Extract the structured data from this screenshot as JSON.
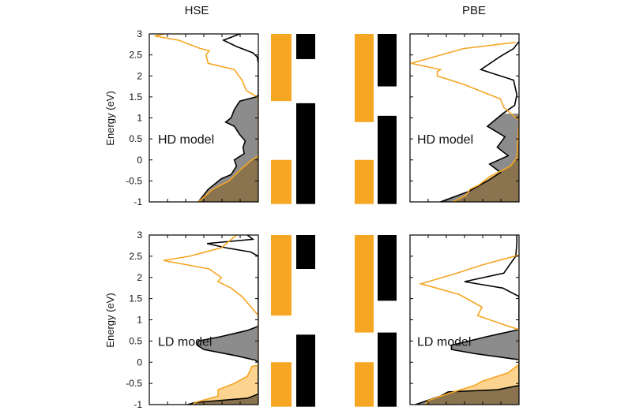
{
  "colors": {
    "black_series": "#000000",
    "orange_series": "#f5a623",
    "black_fill": "#8c8c8c",
    "orange_fill": "#fcd48f"
  },
  "ylabel": "Energy (eV)",
  "columns": [
    "HSE",
    "PBE"
  ],
  "chart_data": [
    {
      "type": "line",
      "column": "HSE",
      "row": 0,
      "annotation": "HD model",
      "ylim": [
        -1,
        3
      ],
      "yticks": [
        "3",
        "2.5",
        "2",
        "1.5",
        "1",
        "0.5",
        "0",
        "-0.5",
        "-1"
      ],
      "x_direction": "right-to-left",
      "black": {
        "points": [
          [
            3,
            0.17
          ],
          [
            2.85,
            0.32
          ],
          [
            2.7,
            0.2
          ],
          [
            2.55,
            0.05
          ],
          [
            2.45,
            0.01
          ],
          [
            2.3,
            0
          ],
          [
            1.55,
            0
          ],
          [
            1.5,
            0.02
          ],
          [
            1.4,
            0.17
          ],
          [
            1.2,
            0.22
          ],
          [
            1.0,
            0.25
          ],
          [
            0.9,
            0.3
          ],
          [
            0.8,
            0.22
          ],
          [
            0.6,
            0.17
          ],
          [
            0.45,
            0.12
          ],
          [
            0.3,
            0.14
          ],
          [
            0.15,
            0.13
          ],
          [
            0,
            0.22
          ],
          [
            -0.15,
            0.2
          ],
          [
            -0.35,
            0.25
          ],
          [
            -0.45,
            0.34
          ],
          [
            -0.7,
            0.46
          ],
          [
            -1,
            0.55
          ]
        ],
        "fill_below": 1.55
      },
      "orange": {
        "points": [
          [
            3,
            0.86
          ],
          [
            2.95,
            0.95
          ],
          [
            2.85,
            0.73
          ],
          [
            2.65,
            0.53
          ],
          [
            2.6,
            0.45
          ],
          [
            2.5,
            0.48
          ],
          [
            2.3,
            0.46
          ],
          [
            2.15,
            0.22
          ],
          [
            1.9,
            0.15
          ],
          [
            1.65,
            0.11
          ],
          [
            1.5,
            0.01
          ],
          [
            1.45,
            0
          ],
          [
            0.1,
            0
          ],
          [
            0,
            0.06
          ],
          [
            -0.2,
            0.15
          ],
          [
            -0.5,
            0.27
          ],
          [
            -0.7,
            0.42
          ],
          [
            -1,
            0.55
          ]
        ],
        "fill_below": 0.1
      },
      "bars": {
        "orange": [
          [
            -1.05,
            0
          ],
          [
            1.4,
            3
          ]
        ],
        "black": [
          [
            -1.05,
            1.35
          ],
          [
            2.4,
            3
          ]
        ]
      }
    },
    {
      "type": "line",
      "column": "PBE",
      "row": 0,
      "annotation": "HD model",
      "ylim": [
        -1,
        3
      ],
      "x_direction": "right-to-left",
      "black": {
        "points": [
          [
            2.82,
            0
          ],
          [
            2.65,
            0.05
          ],
          [
            2.45,
            0.18
          ],
          [
            2.15,
            0.35
          ],
          [
            1.9,
            0.05
          ],
          [
            1.55,
            0.02
          ],
          [
            1.3,
            0.04
          ],
          [
            1.1,
            0.15
          ],
          [
            0.8,
            0.29
          ],
          [
            0.55,
            0.13
          ],
          [
            0.3,
            0.2
          ],
          [
            0.1,
            0.1
          ],
          [
            -0.1,
            0.27
          ],
          [
            -0.3,
            0.17
          ],
          [
            -0.5,
            0.29
          ],
          [
            -0.75,
            0.46
          ],
          [
            -1,
            0.72
          ]
        ],
        "fill_below": 1.1
      },
      "orange": {
        "points": [
          [
            2.8,
            0.03
          ],
          [
            2.65,
            0.51
          ],
          [
            2.3,
            0.99
          ],
          [
            2.15,
            0.72
          ],
          [
            2.1,
            0.75
          ],
          [
            2.0,
            0.75
          ],
          [
            1.8,
            0.51
          ],
          [
            1.45,
            0.17
          ],
          [
            1.25,
            0.14
          ],
          [
            1.05,
            0.05
          ],
          [
            0.95,
            0
          ],
          [
            0.05,
            0.02
          ],
          [
            -0.15,
            0.08
          ],
          [
            -0.4,
            0.27
          ],
          [
            -0.6,
            0.37
          ],
          [
            -0.7,
            0.45
          ],
          [
            -0.85,
            0.49
          ],
          [
            -1,
            0.61
          ]
        ],
        "fill_below": 1.1
      },
      "bars": {
        "orange": [
          [
            -1.05,
            0
          ],
          [
            0.9,
            3
          ]
        ],
        "black": [
          [
            -1.05,
            1.05
          ],
          [
            1.75,
            3
          ]
        ]
      }
    },
    {
      "type": "line",
      "column": "HSE",
      "row": 1,
      "annotation": "LD model",
      "ylim": [
        -1,
        3
      ],
      "yticks": [
        "3",
        "2.5",
        "2",
        "1.5",
        "1",
        "0.5",
        "0",
        "-0.5",
        "-1"
      ],
      "x_direction": "right-to-left",
      "black": {
        "points": [
          [
            3,
            0.1
          ],
          [
            2.9,
            0.05
          ],
          [
            2.8,
            0.47
          ],
          [
            2.7,
            0.3
          ],
          [
            2.6,
            0.07
          ],
          [
            2.5,
            0
          ],
          [
            0.85,
            0
          ],
          [
            0.75,
            0.1
          ],
          [
            0.6,
            0.35
          ],
          [
            0.5,
            0.55
          ],
          [
            0.4,
            0.56
          ],
          [
            0.3,
            0.5
          ],
          [
            0.15,
            0.2
          ],
          [
            0.05,
            0.03
          ],
          [
            0,
            0
          ],
          [
            -0.75,
            0
          ],
          [
            -0.85,
            0.1
          ],
          [
            -0.95,
            0.58
          ],
          [
            -1,
            0.65
          ]
        ],
        "fill_below": 0.9
      },
      "orange": {
        "points": [
          [
            3,
            0.2
          ],
          [
            2.7,
            0.34
          ],
          [
            2.5,
            0.63
          ],
          [
            2.4,
            0.87
          ],
          [
            2.2,
            0.45
          ],
          [
            2.0,
            0.34
          ],
          [
            1.9,
            0.37
          ],
          [
            1.75,
            0.25
          ],
          [
            1.55,
            0.15
          ],
          [
            1.1,
            0
          ],
          [
            -0.07,
            0
          ],
          [
            -0.1,
            0.06
          ],
          [
            -0.33,
            0.1
          ],
          [
            -0.5,
            0.22
          ],
          [
            -0.65,
            0.37
          ],
          [
            -0.8,
            0.37
          ],
          [
            -0.95,
            0.58
          ],
          [
            -1,
            0.6
          ]
        ],
        "fill_below": 0.0
      },
      "bars": {
        "orange": [
          [
            -1.05,
            0
          ],
          [
            1.1,
            3
          ]
        ],
        "black": [
          [
            -1.05,
            0.65
          ],
          [
            2.2,
            3
          ]
        ]
      }
    },
    {
      "type": "line",
      "column": "PBE",
      "row": 1,
      "annotation": "LD model",
      "ylim": [
        -1,
        3
      ],
      "x_direction": "right-to-left",
      "black": {
        "points": [
          [
            3,
            0.02
          ],
          [
            2.8,
            0.02
          ],
          [
            2.5,
            0.03
          ],
          [
            2.1,
            0.14
          ],
          [
            1.9,
            0.5
          ],
          [
            1.75,
            0.15
          ],
          [
            1.55,
            0
          ],
          [
            0.77,
            0
          ],
          [
            0.6,
            0.3
          ],
          [
            0.4,
            0.62
          ],
          [
            0.3,
            0.62
          ],
          [
            0.2,
            0.4
          ],
          [
            0.06,
            0
          ],
          [
            -0.55,
            0
          ],
          [
            -0.65,
            0.2
          ],
          [
            -0.7,
            0.65
          ],
          [
            -0.8,
            0.72
          ],
          [
            -0.85,
            0.78
          ],
          [
            -1,
            0.95
          ]
        ],
        "fill_below": 0.8
      },
      "orange": {
        "points": [
          [
            2.53,
            0
          ],
          [
            2.3,
            0.33
          ],
          [
            2.1,
            0.57
          ],
          [
            1.85,
            0.9
          ],
          [
            1.6,
            0.55
          ],
          [
            1.3,
            0.34
          ],
          [
            1.1,
            0.38
          ],
          [
            0.85,
            0.1
          ],
          [
            0.77,
            0
          ],
          [
            -0.05,
            0
          ],
          [
            -0.25,
            0.1
          ],
          [
            -0.45,
            0.34
          ],
          [
            -0.55,
            0.41
          ],
          [
            -0.75,
            0.66
          ],
          [
            -0.9,
            0.83
          ],
          [
            -1,
            0.86
          ]
        ],
        "fill_below": 0.0
      },
      "bars": {
        "orange": [
          [
            -1.05,
            0
          ],
          [
            0.7,
            3
          ]
        ],
        "black": [
          [
            -1.05,
            0.7
          ],
          [
            1.45,
            3
          ]
        ]
      }
    }
  ]
}
